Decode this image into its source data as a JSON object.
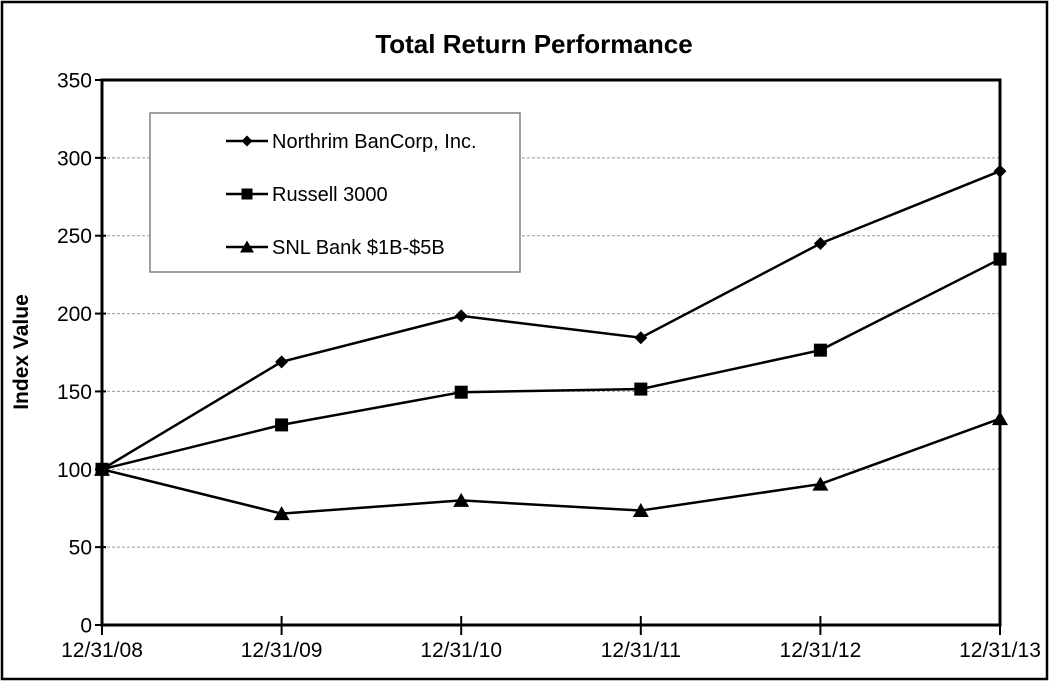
{
  "chart_data": {
    "type": "line",
    "title": "Total Return Performance",
    "xlabel": "",
    "ylabel": "Index Value",
    "categories": [
      "12/31/08",
      "12/31/09",
      "12/31/10",
      "12/31/11",
      "12/31/12",
      "12/31/13"
    ],
    "series": [
      {
        "name": "Northrim BanCorp, Inc.",
        "marker": "diamond",
        "values": [
          100,
          169,
          198.5,
          184.5,
          245,
          291.5
        ]
      },
      {
        "name": "Russell 3000",
        "marker": "square",
        "values": [
          100,
          128.5,
          149.5,
          151.5,
          176.5,
          235
        ]
      },
      {
        "name": "SNL Bank $1B-$5B",
        "marker": "triangle",
        "values": [
          100,
          71.5,
          80,
          73.5,
          90.5,
          132.5
        ]
      }
    ],
    "ylim": [
      0,
      350
    ],
    "ytick_step": 50,
    "grid": "horizontal-dashed",
    "legend_position": "upper-left-inside",
    "colors": {
      "series_line": "#000000",
      "gridline": "#999999",
      "plot_border": "#000000",
      "outer_border": "#000000",
      "legend_border": "#808080",
      "background": "#ffffff"
    }
  }
}
